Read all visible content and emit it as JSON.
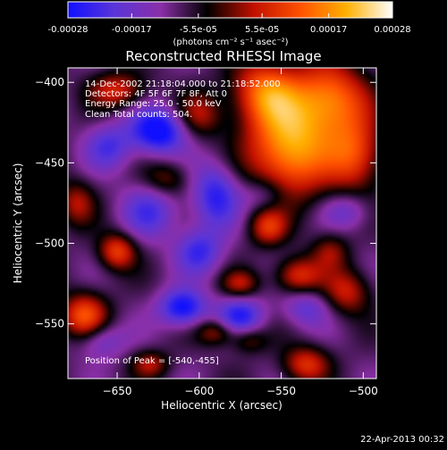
{
  "colorbar": {
    "tick_labels": [
      "-0.00028",
      "-0.00017",
      "-5.5e-05",
      "5.5e-05",
      "0.00017",
      "0.00028"
    ],
    "tick_values": [
      -0.00028,
      -0.00017,
      -5.5e-05,
      5.5e-05,
      0.00017,
      0.00028
    ],
    "range": [
      -0.00028,
      0.00028
    ],
    "unit_label": "(photons cm⁻² s⁻¹ asec⁻²)",
    "colors": [
      "#1010ff",
      "#5a35d8",
      "#8a2fa8",
      "#000000",
      "#c01000",
      "#ff5000",
      "#ffb000",
      "#ffffff"
    ]
  },
  "chart_data": {
    "type": "heatmap",
    "title": "Reconstructed RHESSI Image",
    "xlabel": "Heliocentric X (arcsec)",
    "ylabel": "Heliocentric Y (arcsec)",
    "xlim": [
      -680,
      -492
    ],
    "ylim": [
      -584,
      -391
    ],
    "xticks": [
      -650,
      -600,
      -550,
      -500
    ],
    "yticks": [
      -400,
      -450,
      -500,
      -550
    ],
    "annotation_lines": [
      "14-Dec-2002 21:18:04.000 to 21:18:52.000",
      "Detectors: 4F 5F 6F 7F 8F, Att 0",
      "Energy Range: 25.0 - 50.0 keV",
      "Clean    Total counts: 504."
    ],
    "peak_label": "Position of Peak = [-540,-455]",
    "peak": [
      -540,
      -455
    ],
    "blobs": [
      {
        "x": -545,
        "y": -440,
        "amp": 0.00028,
        "sx": 18,
        "sy": 22
      },
      {
        "x": -520,
        "y": -410,
        "amp": 0.00022,
        "sx": 16,
        "sy": 16
      },
      {
        "x": -560,
        "y": -405,
        "amp": 0.0002,
        "sx": 14,
        "sy": 14
      },
      {
        "x": -505,
        "y": -445,
        "amp": 0.00018,
        "sx": 12,
        "sy": 16
      },
      {
        "x": -670,
        "y": -545,
        "amp": 0.0002,
        "sx": 10,
        "sy": 10
      },
      {
        "x": -650,
        "y": -505,
        "amp": 0.00018,
        "sx": 8,
        "sy": 8
      },
      {
        "x": -675,
        "y": -475,
        "amp": 0.00012,
        "sx": 8,
        "sy": 10
      },
      {
        "x": -650,
        "y": -405,
        "amp": 0.00015,
        "sx": 12,
        "sy": 8
      },
      {
        "x": -600,
        "y": -420,
        "amp": 0.00012,
        "sx": 10,
        "sy": 10
      },
      {
        "x": -620,
        "y": -460,
        "amp": 0.0001,
        "sx": 10,
        "sy": 8
      },
      {
        "x": -558,
        "y": -490,
        "amp": 0.00015,
        "sx": 8,
        "sy": 8
      },
      {
        "x": -540,
        "y": -520,
        "amp": 0.00016,
        "sx": 10,
        "sy": 8
      },
      {
        "x": -575,
        "y": -525,
        "amp": 0.00012,
        "sx": 8,
        "sy": 6
      },
      {
        "x": -510,
        "y": -530,
        "amp": 0.00014,
        "sx": 10,
        "sy": 10
      },
      {
        "x": -520,
        "y": -505,
        "amp": 0.0001,
        "sx": 8,
        "sy": 8
      },
      {
        "x": -535,
        "y": -575,
        "amp": 0.00016,
        "sx": 10,
        "sy": 8
      },
      {
        "x": -590,
        "y": -555,
        "amp": 0.00012,
        "sx": 8,
        "sy": 6
      },
      {
        "x": -630,
        "y": -575,
        "amp": 0.00012,
        "sx": 8,
        "sy": 6
      },
      {
        "x": -570,
        "y": -560,
        "amp": 9e-05,
        "sx": 8,
        "sy": 6
      },
      {
        "x": -625,
        "y": -430,
        "amp": -0.00022,
        "sx": 12,
        "sy": 10
      },
      {
        "x": -590,
        "y": -470,
        "amp": -0.00016,
        "sx": 10,
        "sy": 14
      },
      {
        "x": -610,
        "y": -540,
        "amp": -0.0002,
        "sx": 10,
        "sy": 8
      },
      {
        "x": -575,
        "y": -545,
        "amp": -0.00016,
        "sx": 10,
        "sy": 8
      },
      {
        "x": -630,
        "y": -480,
        "amp": -0.00012,
        "sx": 12,
        "sy": 12
      },
      {
        "x": -655,
        "y": -440,
        "amp": -0.00012,
        "sx": 10,
        "sy": 10
      },
      {
        "x": -535,
        "y": -540,
        "amp": -0.0001,
        "sx": 10,
        "sy": 8
      },
      {
        "x": -510,
        "y": -480,
        "amp": -9e-05,
        "sx": 10,
        "sy": 8
      },
      {
        "x": -600,
        "y": -505,
        "amp": -0.00014,
        "sx": 10,
        "sy": 10
      },
      {
        "x": -660,
        "y": -560,
        "amp": -0.0001,
        "sx": 10,
        "sy": 8
      },
      {
        "x": -560,
        "y": -470,
        "amp": -8e-05,
        "sx": 10,
        "sy": 8
      }
    ]
  },
  "footer": {
    "date": "22-Apr-2013 00:32"
  }
}
